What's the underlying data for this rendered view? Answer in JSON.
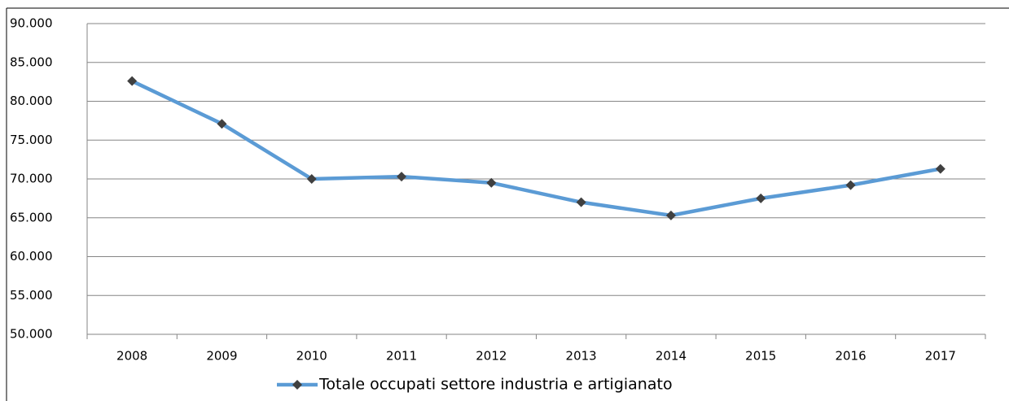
{
  "chart_data": {
    "type": "line",
    "categories": [
      "2008",
      "2009",
      "2010",
      "2011",
      "2012",
      "2013",
      "2014",
      "2015",
      "2016",
      "2017"
    ],
    "series": [
      {
        "name": "Totale occupati settore industria e artigianato",
        "color": "#5b9bd5",
        "marker_color": "#404040",
        "values": [
          82600,
          77100,
          70000,
          70300,
          69500,
          67000,
          65300,
          67500,
          69200,
          71300
        ]
      }
    ],
    "ylim": [
      50000,
      90000
    ],
    "yticks": [
      {
        "value": 50000,
        "label": "50.000"
      },
      {
        "value": 55000,
        "label": "55.000"
      },
      {
        "value": 60000,
        "label": "60.000"
      },
      {
        "value": 65000,
        "label": "65.000"
      },
      {
        "value": 70000,
        "label": "70.000"
      },
      {
        "value": 75000,
        "label": "75.000"
      },
      {
        "value": 80000,
        "label": "80.000"
      },
      {
        "value": 85000,
        "label": "85.000"
      },
      {
        "value": 90000,
        "label": "90.000"
      }
    ],
    "grid": true
  }
}
